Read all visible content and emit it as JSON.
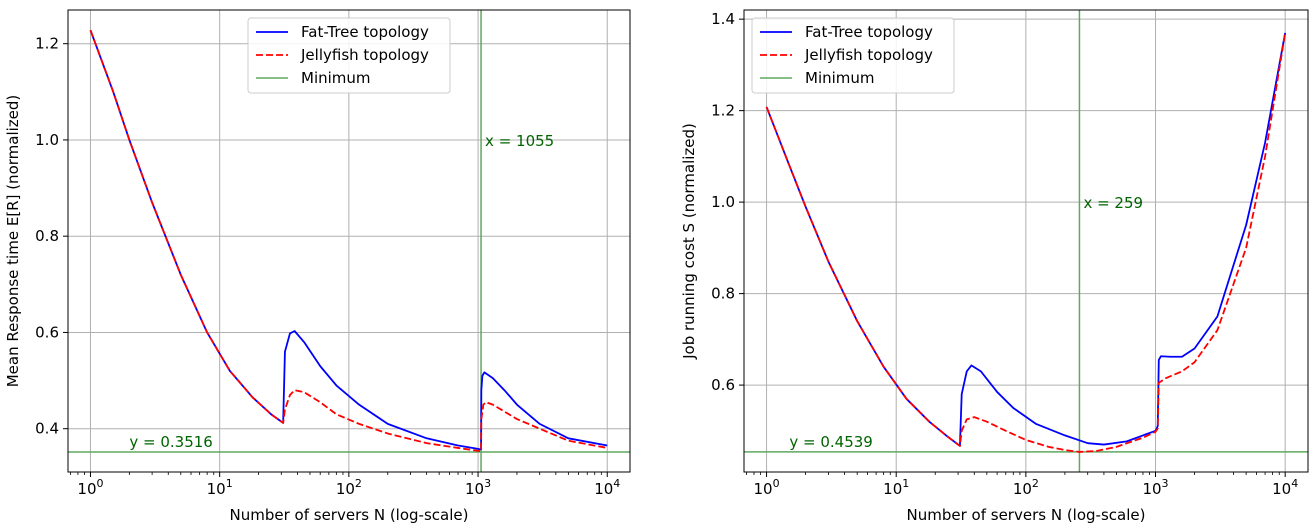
{
  "chart_data": [
    {
      "type": "line",
      "xscale": "log",
      "xlabel": "Number of servers N (log-scale)",
      "ylabel": "Mean Response time E[R] (normalized)",
      "xlim": [
        0.67,
        15000
      ],
      "ylim": [
        0.31,
        1.27
      ],
      "xticks": [
        1,
        10,
        100,
        1000,
        10000
      ],
      "xtick_labels": [
        {
          "base": "10",
          "exp": "0"
        },
        {
          "base": "10",
          "exp": "1"
        },
        {
          "base": "10",
          "exp": "2"
        },
        {
          "base": "10",
          "exp": "3"
        },
        {
          "base": "10",
          "exp": "4"
        }
      ],
      "yticks": [
        0.4,
        0.6,
        0.8,
        1.0,
        1.2
      ],
      "ytick_labels": [
        "0.4",
        "0.6",
        "0.8",
        "1.0",
        "1.2"
      ],
      "grid": true,
      "legend_position": "upper center",
      "series": [
        {
          "name": "Fat-Tree topology",
          "color": "#0000ff",
          "style": "solid",
          "points": [
            [
              1,
              1.228
            ],
            [
              1.5,
              1.1
            ],
            [
              2,
              1.0
            ],
            [
              3,
              0.87
            ],
            [
              5,
              0.72
            ],
            [
              8,
              0.6
            ],
            [
              12,
              0.52
            ],
            [
              18,
              0.465
            ],
            [
              25,
              0.43
            ],
            [
              31,
              0.412
            ],
            [
              32,
              0.56
            ],
            [
              35,
              0.598
            ],
            [
              38,
              0.603
            ],
            [
              45,
              0.58
            ],
            [
              60,
              0.53
            ],
            [
              80,
              0.49
            ],
            [
              120,
              0.45
            ],
            [
              200,
              0.41
            ],
            [
              400,
              0.38
            ],
            [
              700,
              0.365
            ],
            [
              1000,
              0.358
            ],
            [
              1040,
              0.357
            ],
            [
              1055,
              0.357
            ],
            [
              1060,
              0.48
            ],
            [
              1080,
              0.51
            ],
            [
              1120,
              0.517
            ],
            [
              1300,
              0.505
            ],
            [
              1600,
              0.48
            ],
            [
              2000,
              0.45
            ],
            [
              3000,
              0.41
            ],
            [
              5000,
              0.38
            ],
            [
              10000,
              0.365
            ]
          ]
        },
        {
          "name": "Jellyfish topology",
          "color": "#ff0000",
          "style": "dashed",
          "points": [
            [
              1,
              1.228
            ],
            [
              1.5,
              1.1
            ],
            [
              2,
              1.0
            ],
            [
              3,
              0.87
            ],
            [
              5,
              0.72
            ],
            [
              8,
              0.6
            ],
            [
              12,
              0.52
            ],
            [
              18,
              0.465
            ],
            [
              25,
              0.43
            ],
            [
              31,
              0.412
            ],
            [
              32,
              0.44
            ],
            [
              35,
              0.47
            ],
            [
              38,
              0.48
            ],
            [
              45,
              0.476
            ],
            [
              60,
              0.455
            ],
            [
              80,
              0.43
            ],
            [
              120,
              0.41
            ],
            [
              200,
              0.39
            ],
            [
              400,
              0.37
            ],
            [
              700,
              0.36
            ],
            [
              1000,
              0.354
            ],
            [
              1055,
              0.353
            ],
            [
              1060,
              0.42
            ],
            [
              1100,
              0.45
            ],
            [
              1150,
              0.455
            ],
            [
              1300,
              0.45
            ],
            [
              2000,
              0.42
            ],
            [
              3000,
              0.4
            ],
            [
              5000,
              0.375
            ],
            [
              10000,
              0.36
            ]
          ]
        }
      ],
      "minimum": {
        "label": "Minimum",
        "color": "#5fa85f",
        "x": 1055,
        "y": 0.3516
      },
      "annotations": {
        "x_text": "x = 1055",
        "y_text": "y = 0.3516"
      }
    },
    {
      "type": "line",
      "xscale": "log",
      "xlabel": "Number of servers N (log-scale)",
      "ylabel": "Job running cost S (normalized)",
      "xlim": [
        0.67,
        15000
      ],
      "ylim": [
        0.41,
        1.42
      ],
      "xticks": [
        1,
        10,
        100,
        1000,
        10000
      ],
      "xtick_labels": [
        {
          "base": "10",
          "exp": "0"
        },
        {
          "base": "10",
          "exp": "1"
        },
        {
          "base": "10",
          "exp": "2"
        },
        {
          "base": "10",
          "exp": "3"
        },
        {
          "base": "10",
          "exp": "4"
        }
      ],
      "yticks": [
        0.6,
        0.8,
        1.0,
        1.2,
        1.4
      ],
      "ytick_labels": [
        "0.6",
        "0.8",
        "1.0",
        "1.2",
        "1.4"
      ],
      "grid": true,
      "legend_position": "upper left",
      "series": [
        {
          "name": "Fat-Tree topology",
          "color": "#0000ff",
          "style": "solid",
          "points": [
            [
              1,
              1.208
            ],
            [
              1.5,
              1.08
            ],
            [
              2,
              0.99
            ],
            [
              3,
              0.87
            ],
            [
              5,
              0.74
            ],
            [
              8,
              0.64
            ],
            [
              12,
              0.57
            ],
            [
              18,
              0.52
            ],
            [
              25,
              0.487
            ],
            [
              31,
              0.467
            ],
            [
              32,
              0.58
            ],
            [
              35,
              0.63
            ],
            [
              38,
              0.643
            ],
            [
              45,
              0.63
            ],
            [
              60,
              0.585
            ],
            [
              80,
              0.55
            ],
            [
              120,
              0.515
            ],
            [
              200,
              0.49
            ],
            [
              300,
              0.473
            ],
            [
              400,
              0.47
            ],
            [
              600,
              0.477
            ],
            [
              800,
              0.49
            ],
            [
              1000,
              0.5
            ],
            [
              1040,
              0.51
            ],
            [
              1060,
              0.655
            ],
            [
              1100,
              0.663
            ],
            [
              1300,
              0.662
            ],
            [
              1600,
              0.662
            ],
            [
              2000,
              0.68
            ],
            [
              3000,
              0.75
            ],
            [
              5000,
              0.95
            ],
            [
              7000,
              1.13
            ],
            [
              10000,
              1.37
            ]
          ]
        },
        {
          "name": "Jellyfish topology",
          "color": "#ff0000",
          "style": "dashed",
          "points": [
            [
              1,
              1.208
            ],
            [
              1.5,
              1.08
            ],
            [
              2,
              0.99
            ],
            [
              3,
              0.87
            ],
            [
              5,
              0.74
            ],
            [
              8,
              0.64
            ],
            [
              12,
              0.57
            ],
            [
              18,
              0.52
            ],
            [
              25,
              0.487
            ],
            [
              31,
              0.467
            ],
            [
              32,
              0.5
            ],
            [
              35,
              0.525
            ],
            [
              40,
              0.53
            ],
            [
              50,
              0.52
            ],
            [
              70,
              0.5
            ],
            [
              100,
              0.48
            ],
            [
              150,
              0.465
            ],
            [
              200,
              0.458
            ],
            [
              259,
              0.4539
            ],
            [
              350,
              0.456
            ],
            [
              500,
              0.465
            ],
            [
              800,
              0.485
            ],
            [
              1000,
              0.498
            ],
            [
              1040,
              0.505
            ],
            [
              1060,
              0.605
            ],
            [
              1200,
              0.615
            ],
            [
              1600,
              0.63
            ],
            [
              2000,
              0.65
            ],
            [
              3000,
              0.72
            ],
            [
              5000,
              0.9
            ],
            [
              7000,
              1.1
            ],
            [
              10000,
              1.37
            ]
          ]
        }
      ],
      "minimum": {
        "label": "Minimum",
        "color": "#5fa85f",
        "x": 259,
        "y": 0.4539
      },
      "annotations": {
        "x_text": "x = 259",
        "y_text": "y = 0.4539"
      }
    }
  ]
}
